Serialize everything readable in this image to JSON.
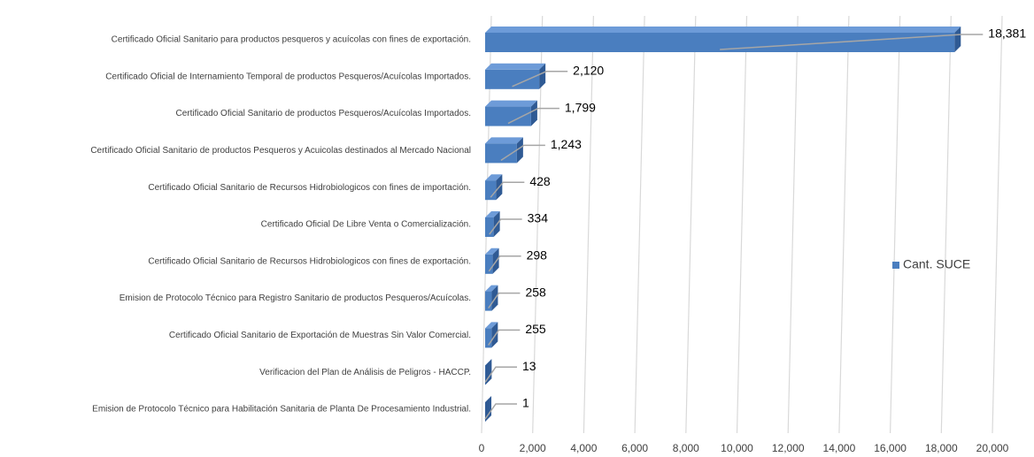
{
  "chart_data": {
    "type": "bar",
    "orientation": "horizontal",
    "categories": [
      "Certificado Oficial Sanitario para productos pesqueros y acuícolas con fines de exportación.",
      "Certificado Oficial de Internamiento Temporal de productos Pesqueros/Acuícolas Importados.",
      "Certificado Oficial Sanitario de productos Pesqueros/Acuícolas Importados.",
      "Certificado Oficial Sanitario de productos Pesqueros y Acuicolas destinados al Mercado Nacional",
      "Certificado Oficial Sanitario de Recursos Hidrobiologicos con fines de importación.",
      "Certificado Oficial De Libre Venta o Comercialización.",
      "Certificado Oficial Sanitario de Recursos Hidrobiologicos con fines de exportación.",
      "Emision de Protocolo Técnico para Registro Sanitario de productos Pesqueros/Acuícolas.",
      "Certificado Oficial Sanitario de Exportación de Muestras Sin Valor Comercial.",
      "Verificacion del Plan de Análisis de Peligros - HACCP.",
      "Emision de Protocolo Técnico para Habilitación Sanitaria de Planta De Procesamiento Industrial."
    ],
    "series": [
      {
        "name": "Cant. SUCE",
        "color": "#4a7ebf",
        "values": [
          18381,
          2120,
          1799,
          1243,
          428,
          334,
          298,
          258,
          255,
          13,
          1
        ],
        "value_labels": [
          "18,381",
          "2,120",
          "1,799",
          "1,243",
          "428",
          "334",
          "298",
          "258",
          "255",
          "13",
          "1"
        ]
      }
    ],
    "xlim": [
      0,
      20000
    ],
    "xticks": [
      0,
      {
        "value": 2000,
        "label": "2,000"
      },
      {
        "value": 4000,
        "label": "4,000"
      },
      {
        "value": 6000,
        "label": "6,000"
      },
      {
        "value": 8000,
        "label": "8,000"
      },
      {
        "value": 10000,
        "label": "10,000"
      },
      {
        "value": 12000,
        "label": "12,000"
      },
      {
        "value": 14000,
        "label": "14,000"
      },
      {
        "value": 16000,
        "label": "16,000"
      },
      {
        "value": 18000,
        "label": "18,000"
      },
      {
        "value": 20000,
        "label": "20,000"
      }
    ],
    "grid": true,
    "legend": "right"
  }
}
